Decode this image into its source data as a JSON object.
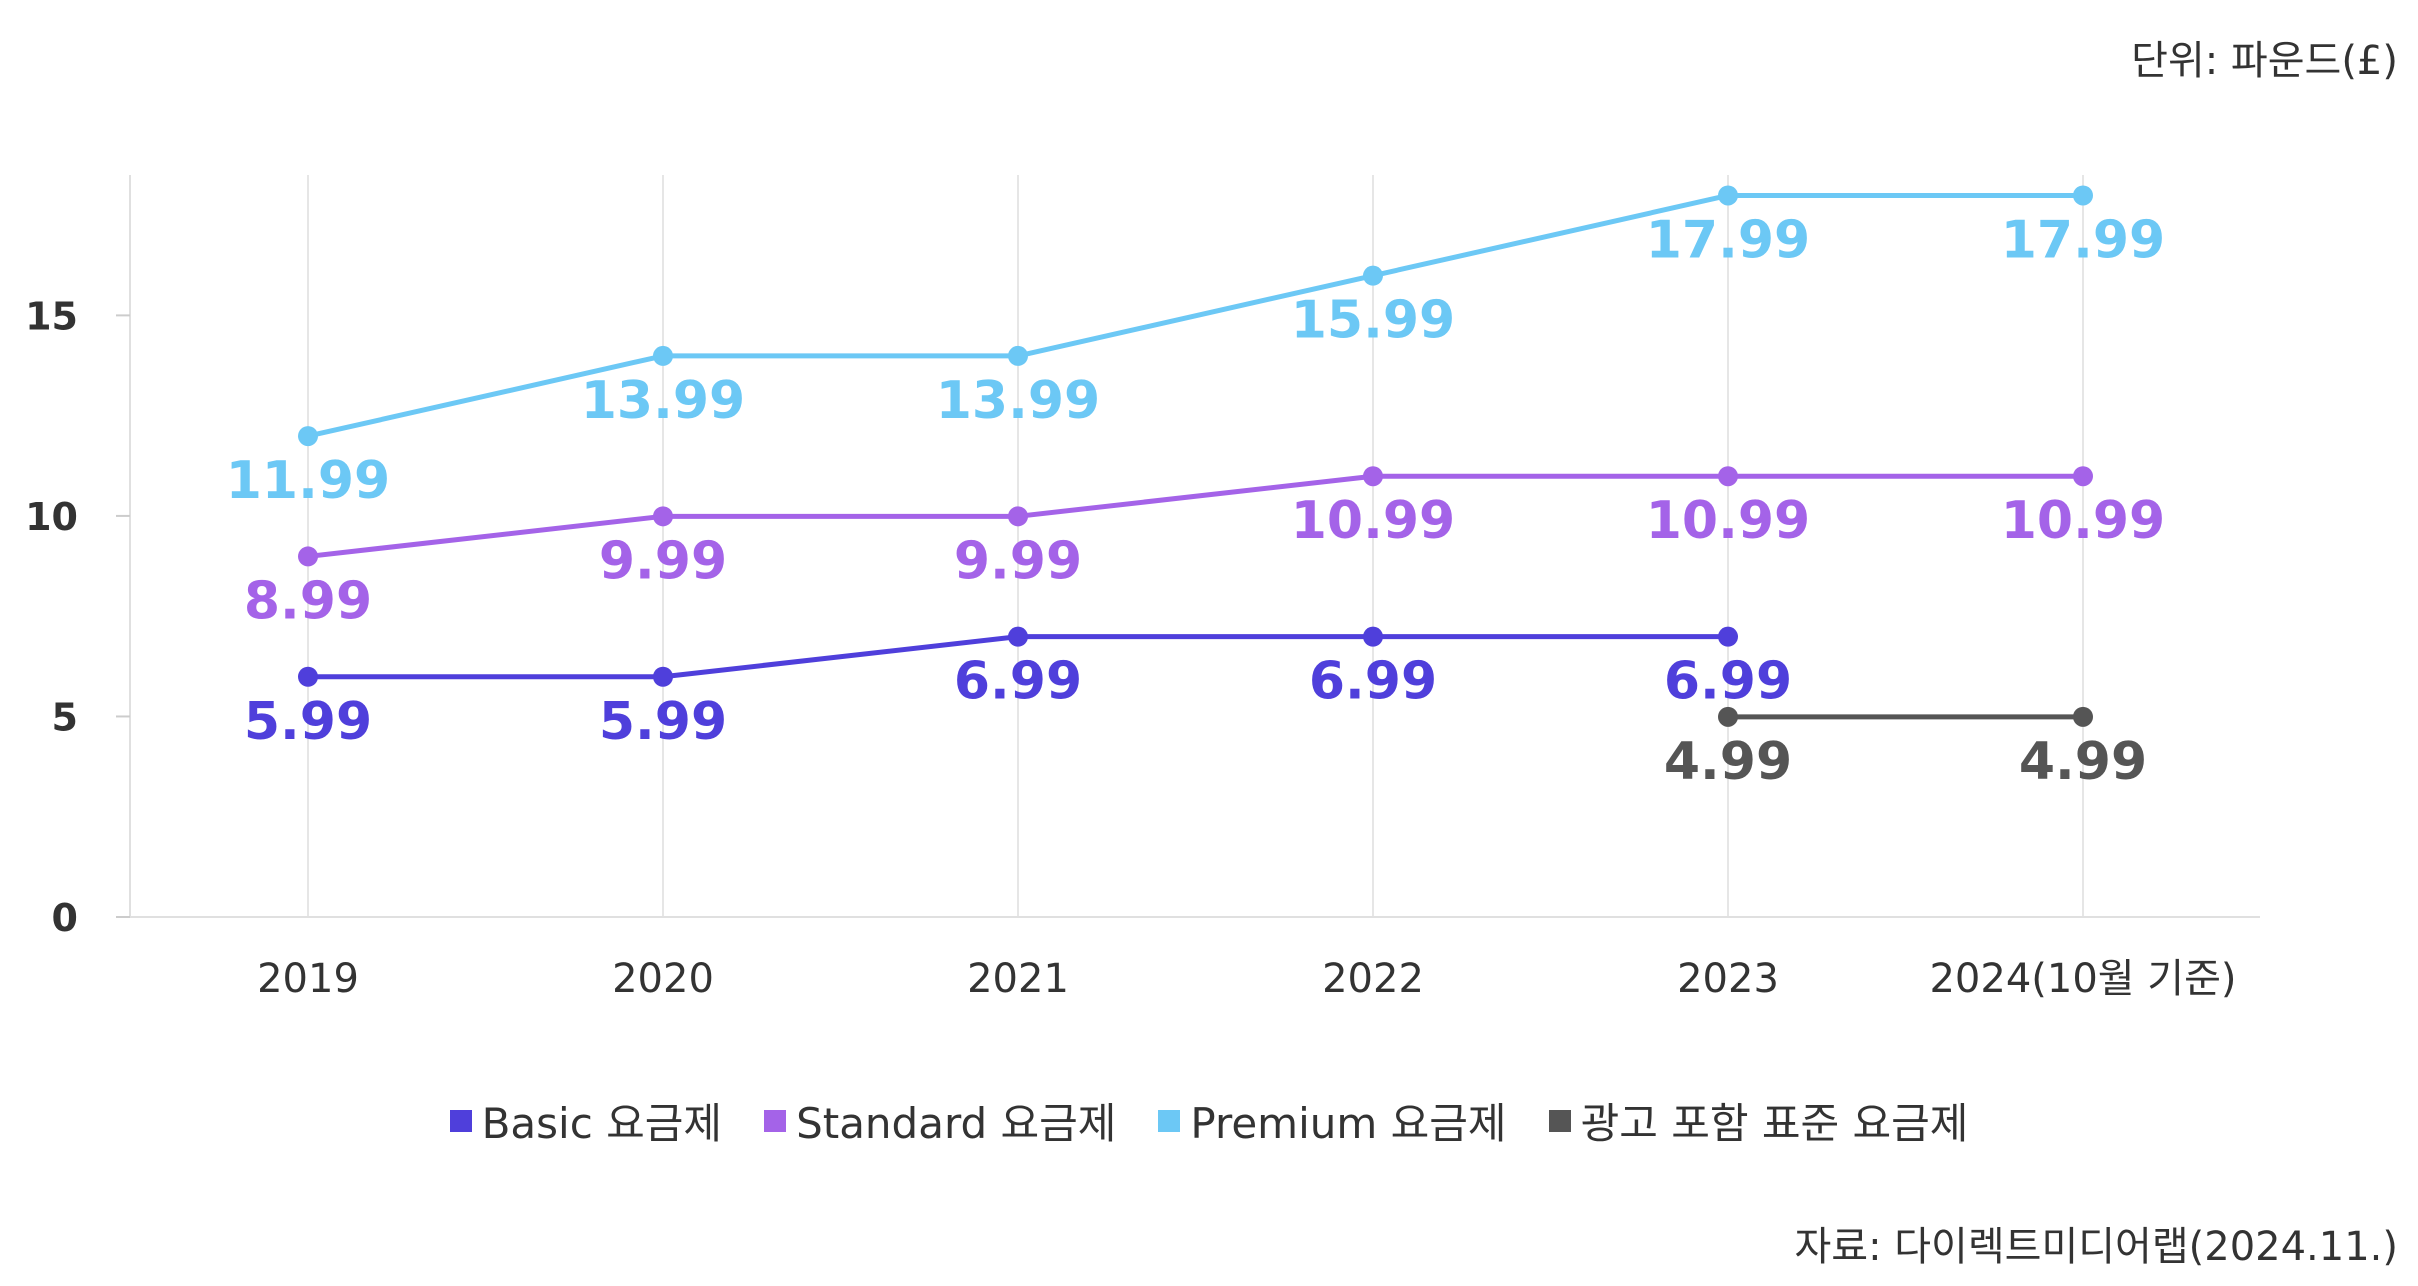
{
  "unit_note": "단위: 파운드(£)",
  "source_note": "자료: 다이렉트미디어랩(2024.11.)",
  "chart_data": {
    "type": "line",
    "categories": [
      "2019",
      "2020",
      "2021",
      "2022",
      "2023",
      "2024(10월 기준)"
    ],
    "ylim": [
      0,
      18.5
    ],
    "yticks": [
      0,
      5,
      10,
      15
    ],
    "grid": "vertical",
    "legend_position": "bottom",
    "series": [
      {
        "name": "Basic 요금제",
        "color": "#4f3fdb",
        "values": [
          5.99,
          5.99,
          6.99,
          6.99,
          6.99,
          null
        ],
        "labels": [
          "5.99",
          "5.99",
          "6.99",
          "6.99",
          "6.99",
          null
        ]
      },
      {
        "name": "Standard 요금제",
        "color": "#a463e8",
        "values": [
          8.99,
          9.99,
          9.99,
          10.99,
          10.99,
          10.99
        ],
        "labels": [
          "8.99",
          "9.99",
          "9.99",
          "10.99",
          "10.99",
          "10.99"
        ]
      },
      {
        "name": "Premium 요금제",
        "color": "#6cc8f5",
        "values": [
          11.99,
          13.99,
          13.99,
          15.99,
          17.99,
          17.99
        ],
        "labels": [
          "11.99",
          "13.99",
          "13.99",
          "15.99",
          "17.99",
          "17.99"
        ]
      },
      {
        "name": "광고 포함 표준 요금제",
        "color": "#555555",
        "values": [
          null,
          null,
          null,
          null,
          4.99,
          4.99
        ],
        "labels": [
          null,
          null,
          null,
          null,
          "4.99",
          "4.99"
        ]
      }
    ]
  }
}
